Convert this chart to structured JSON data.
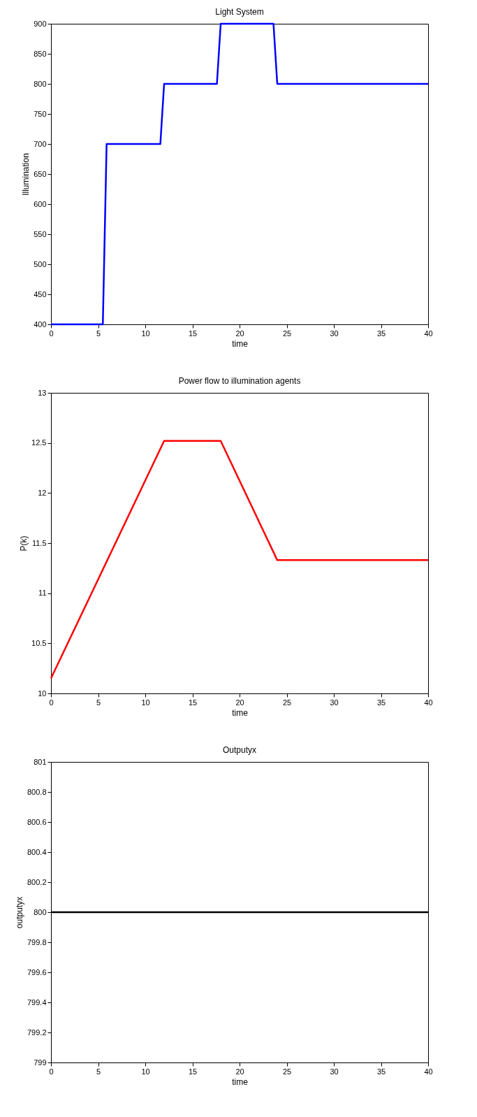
{
  "chart_data": [
    {
      "type": "line",
      "title": "Light System",
      "xlabel": "time",
      "ylabel": "Illumination",
      "x": [
        0,
        5.5,
        5.9,
        11.6,
        12,
        17.6,
        18,
        23.6,
        24,
        40
      ],
      "series": [
        {
          "color": "#0000ff",
          "values": [
            400,
            400,
            700,
            700,
            800,
            800,
            900,
            900,
            800,
            800
          ]
        }
      ],
      "xlim": [
        0,
        40
      ],
      "xticks": [
        0,
        5,
        10,
        15,
        20,
        25,
        30,
        35,
        40
      ],
      "ylim": [
        400,
        900
      ],
      "yticks": [
        400,
        450,
        500,
        550,
        600,
        650,
        700,
        750,
        800,
        850,
        900
      ],
      "grid": false
    },
    {
      "type": "line",
      "title": "Power flow to illumination agents",
      "xlabel": "time",
      "ylabel": "P(k)",
      "x": [
        0,
        12,
        18,
        24,
        40
      ],
      "series": [
        {
          "color": "#ff0000",
          "values": [
            10.15,
            12.52,
            12.52,
            11.33,
            11.33
          ]
        }
      ],
      "xlim": [
        0,
        40
      ],
      "xticks": [
        0,
        5,
        10,
        15,
        20,
        25,
        30,
        35,
        40
      ],
      "ylim": [
        10,
        13
      ],
      "yticks": [
        10,
        10.5,
        11,
        11.5,
        12,
        12.5,
        13
      ],
      "grid": false
    },
    {
      "type": "line",
      "title": "Outputyx",
      "xlabel": "time",
      "ylabel": "outputyx",
      "x": [
        0,
        40
      ],
      "series": [
        {
          "color": "#000000",
          "values": [
            800,
            800
          ]
        }
      ],
      "xlim": [
        0,
        40
      ],
      "xticks": [
        0,
        5,
        10,
        15,
        20,
        25,
        30,
        35,
        40
      ],
      "ylim": [
        799,
        801
      ],
      "yticks": [
        799,
        799.2,
        799.4,
        799.6,
        799.8,
        800,
        800.2,
        800.4,
        800.6,
        800.8,
        801
      ],
      "grid": false
    }
  ]
}
